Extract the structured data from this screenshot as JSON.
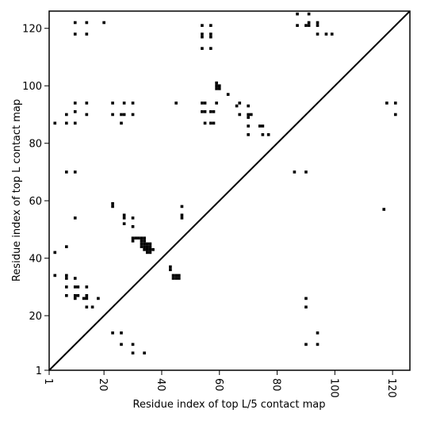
{
  "chart_data": {
    "type": "scatter",
    "marker": "square",
    "xlabel": "Residue index of top L/5 contact map",
    "ylabel": "Residue index of top L contact map",
    "xlim": [
      1,
      126
    ],
    "ylim": [
      1,
      126
    ],
    "xticks": [
      1,
      20,
      40,
      60,
      80,
      100,
      120
    ],
    "yticks": [
      1,
      20,
      40,
      60,
      80,
      100,
      120
    ],
    "diagonal": true,
    "grid": false,
    "colors": {
      "points": "#000000",
      "diagonal": "#000000",
      "background": "#ffffff"
    },
    "points": [
      [
        10,
        122
      ],
      [
        14,
        122
      ],
      [
        20,
        122
      ],
      [
        10,
        118
      ],
      [
        14,
        118
      ],
      [
        3,
        87
      ],
      [
        7,
        90
      ],
      [
        10,
        91
      ],
      [
        14,
        90
      ],
      [
        7,
        87
      ],
      [
        10,
        87
      ],
      [
        10,
        94
      ],
      [
        14,
        94
      ],
      [
        23,
        94
      ],
      [
        27,
        94
      ],
      [
        30,
        94
      ],
      [
        23,
        90
      ],
      [
        26,
        90
      ],
      [
        27,
        90
      ],
      [
        30,
        90
      ],
      [
        26,
        87
      ],
      [
        7,
        70
      ],
      [
        10,
        70
      ],
      [
        10,
        54
      ],
      [
        7,
        44
      ],
      [
        3,
        42
      ],
      [
        3,
        34
      ],
      [
        7,
        34
      ],
      [
        7,
        33
      ],
      [
        10,
        33
      ],
      [
        7,
        30
      ],
      [
        10,
        30
      ],
      [
        11,
        30
      ],
      [
        14,
        30
      ],
      [
        7,
        27
      ],
      [
        10,
        27
      ],
      [
        11,
        27
      ],
      [
        14,
        27
      ],
      [
        10,
        26
      ],
      [
        13,
        26
      ],
      [
        14,
        26
      ],
      [
        18,
        26
      ],
      [
        14,
        23
      ],
      [
        16,
        23
      ],
      [
        23,
        14
      ],
      [
        26,
        14
      ],
      [
        26,
        10
      ],
      [
        30,
        10
      ],
      [
        30,
        7
      ],
      [
        34,
        7
      ],
      [
        23,
        59
      ],
      [
        23,
        58
      ],
      [
        27,
        55
      ],
      [
        27,
        54
      ],
      [
        27,
        52
      ],
      [
        30,
        54
      ],
      [
        30,
        51
      ],
      [
        47,
        58
      ],
      [
        47,
        55
      ],
      [
        47,
        54
      ],
      [
        30,
        47
      ],
      [
        30,
        46
      ],
      [
        31,
        47
      ],
      [
        32,
        47
      ],
      [
        33,
        47
      ],
      [
        34,
        47
      ],
      [
        33,
        46
      ],
      [
        34,
        46
      ],
      [
        33,
        45
      ],
      [
        34,
        45
      ],
      [
        35,
        45
      ],
      [
        36,
        45
      ],
      [
        33,
        44
      ],
      [
        34,
        44
      ],
      [
        35,
        44
      ],
      [
        36,
        44
      ],
      [
        34,
        43
      ],
      [
        35,
        43
      ],
      [
        36,
        43
      ],
      [
        37,
        43
      ],
      [
        35,
        42
      ],
      [
        36,
        42
      ],
      [
        43,
        37
      ],
      [
        43,
        36
      ],
      [
        44,
        34
      ],
      [
        45,
        34
      ],
      [
        46,
        34
      ],
      [
        44,
        33
      ],
      [
        45,
        33
      ],
      [
        46,
        33
      ],
      [
        45,
        94
      ],
      [
        54,
        94
      ],
      [
        55,
        94
      ],
      [
        54,
        91
      ],
      [
        55,
        91
      ],
      [
        57,
        91
      ],
      [
        58,
        91
      ],
      [
        55,
        87
      ],
      [
        57,
        87
      ],
      [
        58,
        87
      ],
      [
        59,
        94
      ],
      [
        59,
        101
      ],
      [
        59,
        100
      ],
      [
        60,
        100
      ],
      [
        59,
        99
      ],
      [
        60,
        99
      ],
      [
        63,
        97
      ],
      [
        66,
        93
      ],
      [
        67,
        94
      ],
      [
        67,
        90
      ],
      [
        70,
        93
      ],
      [
        70,
        90
      ],
      [
        71,
        90
      ],
      [
        70,
        89
      ],
      [
        70,
        86
      ],
      [
        70,
        83
      ],
      [
        74,
        86
      ],
      [
        75,
        86
      ],
      [
        75,
        83
      ],
      [
        77,
        83
      ],
      [
        54,
        121
      ],
      [
        57,
        121
      ],
      [
        54,
        118
      ],
      [
        57,
        118
      ],
      [
        54,
        117
      ],
      [
        57,
        117
      ],
      [
        54,
        113
      ],
      [
        57,
        113
      ],
      [
        87,
        125
      ],
      [
        91,
        125
      ],
      [
        87,
        121
      ],
      [
        90,
        121
      ],
      [
        91,
        121
      ],
      [
        91,
        122
      ],
      [
        94,
        122
      ],
      [
        94,
        121
      ],
      [
        94,
        118
      ],
      [
        97,
        118
      ],
      [
        99,
        118
      ],
      [
        86,
        70
      ],
      [
        90,
        70
      ],
      [
        90,
        26
      ],
      [
        90,
        23
      ],
      [
        94,
        14
      ],
      [
        90,
        10
      ],
      [
        94,
        10
      ],
      [
        117,
        57
      ],
      [
        118,
        94
      ],
      [
        121,
        94
      ],
      [
        121,
        90
      ]
    ]
  }
}
